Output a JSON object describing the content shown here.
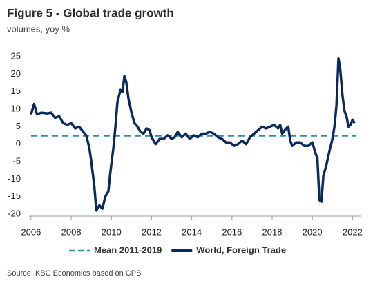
{
  "chart_data": {
    "type": "line",
    "title": "Figure 5 - Global trade growth",
    "subtitle": "volumes, yoy %",
    "source": "Source: KBC Economics based on CPB",
    "xlim": [
      2005.9,
      2022.4
    ],
    "xticks": [
      2006,
      2008,
      2010,
      2012,
      2014,
      2016,
      2018,
      2020,
      2022
    ],
    "ylim": [
      -21,
      27
    ],
    "yticks": [
      -20,
      -15,
      -10,
      -5,
      0,
      5,
      10,
      15,
      20,
      25
    ],
    "grid": false,
    "legend": "bottom",
    "series": [
      {
        "name": "Mean 2011-2019",
        "color": "#2a8fa8",
        "style": "dashed",
        "x": [
          2006,
          2022.2
        ],
        "values": [
          2.4,
          2.4
        ]
      },
      {
        "name": "World, Foreign Trade",
        "color": "#0b2a5b",
        "style": "solid",
        "x": [
          2006.0,
          2006.15,
          2006.3,
          2006.5,
          2006.8,
          2007.0,
          2007.2,
          2007.4,
          2007.6,
          2007.8,
          2008.0,
          2008.2,
          2008.4,
          2008.6,
          2008.75,
          2008.9,
          2009.0,
          2009.15,
          2009.25,
          2009.4,
          2009.55,
          2009.7,
          2009.85,
          2009.95,
          2010.1,
          2010.2,
          2010.3,
          2010.45,
          2010.55,
          2010.65,
          2010.75,
          2010.85,
          2011.0,
          2011.15,
          2011.3,
          2011.45,
          2011.6,
          2011.75,
          2011.9,
          2012.0,
          2012.2,
          2012.4,
          2012.6,
          2012.8,
          2013.0,
          2013.15,
          2013.3,
          2013.5,
          2013.7,
          2013.9,
          2014.1,
          2014.3,
          2014.5,
          2014.7,
          2014.9,
          2015.1,
          2015.3,
          2015.5,
          2015.7,
          2015.9,
          2016.1,
          2016.3,
          2016.5,
          2016.7,
          2016.9,
          2017.1,
          2017.3,
          2017.5,
          2017.7,
          2017.9,
          2018.1,
          2018.3,
          2018.4,
          2018.5,
          2018.7,
          2018.8,
          2018.9,
          2019.0,
          2019.2,
          2019.4,
          2019.6,
          2019.8,
          2020.0,
          2020.15,
          2020.25,
          2020.35,
          2020.45,
          2020.55,
          2020.7,
          2020.85,
          2021.0,
          2021.1,
          2021.2,
          2021.3,
          2021.38,
          2021.5,
          2021.6,
          2021.7,
          2021.8,
          2021.9,
          2022.0,
          2022.1
        ],
        "values": [
          8.5,
          11.5,
          8.5,
          9,
          8.8,
          9,
          7.5,
          8,
          6,
          5.5,
          6,
          4.5,
          5,
          3.5,
          2.5,
          -1,
          -5,
          -12,
          -19,
          -17.5,
          -18.5,
          -15,
          -13.5,
          -8,
          -1,
          5,
          12,
          15.5,
          15,
          19.5,
          17.5,
          13,
          9,
          6,
          5,
          3.5,
          3,
          4.5,
          4,
          2,
          0,
          1.5,
          1.5,
          2.5,
          1.5,
          2,
          3.5,
          2,
          3,
          1.5,
          2.5,
          2,
          3,
          3,
          3.5,
          3,
          2,
          1.5,
          0.5,
          0.5,
          -0.5,
          0,
          1,
          0,
          2,
          3,
          4,
          5,
          4.5,
          5,
          5.5,
          4.5,
          5.5,
          3,
          4.5,
          5,
          1,
          -0.5,
          0.5,
          0.5,
          -0.5,
          -0.5,
          0.5,
          -2.5,
          -4,
          -16,
          -16.5,
          -9,
          -6,
          -2,
          1.5,
          5,
          11,
          24.5,
          22,
          14,
          9.5,
          8,
          5,
          5.5,
          7,
          6
        ]
      }
    ]
  }
}
